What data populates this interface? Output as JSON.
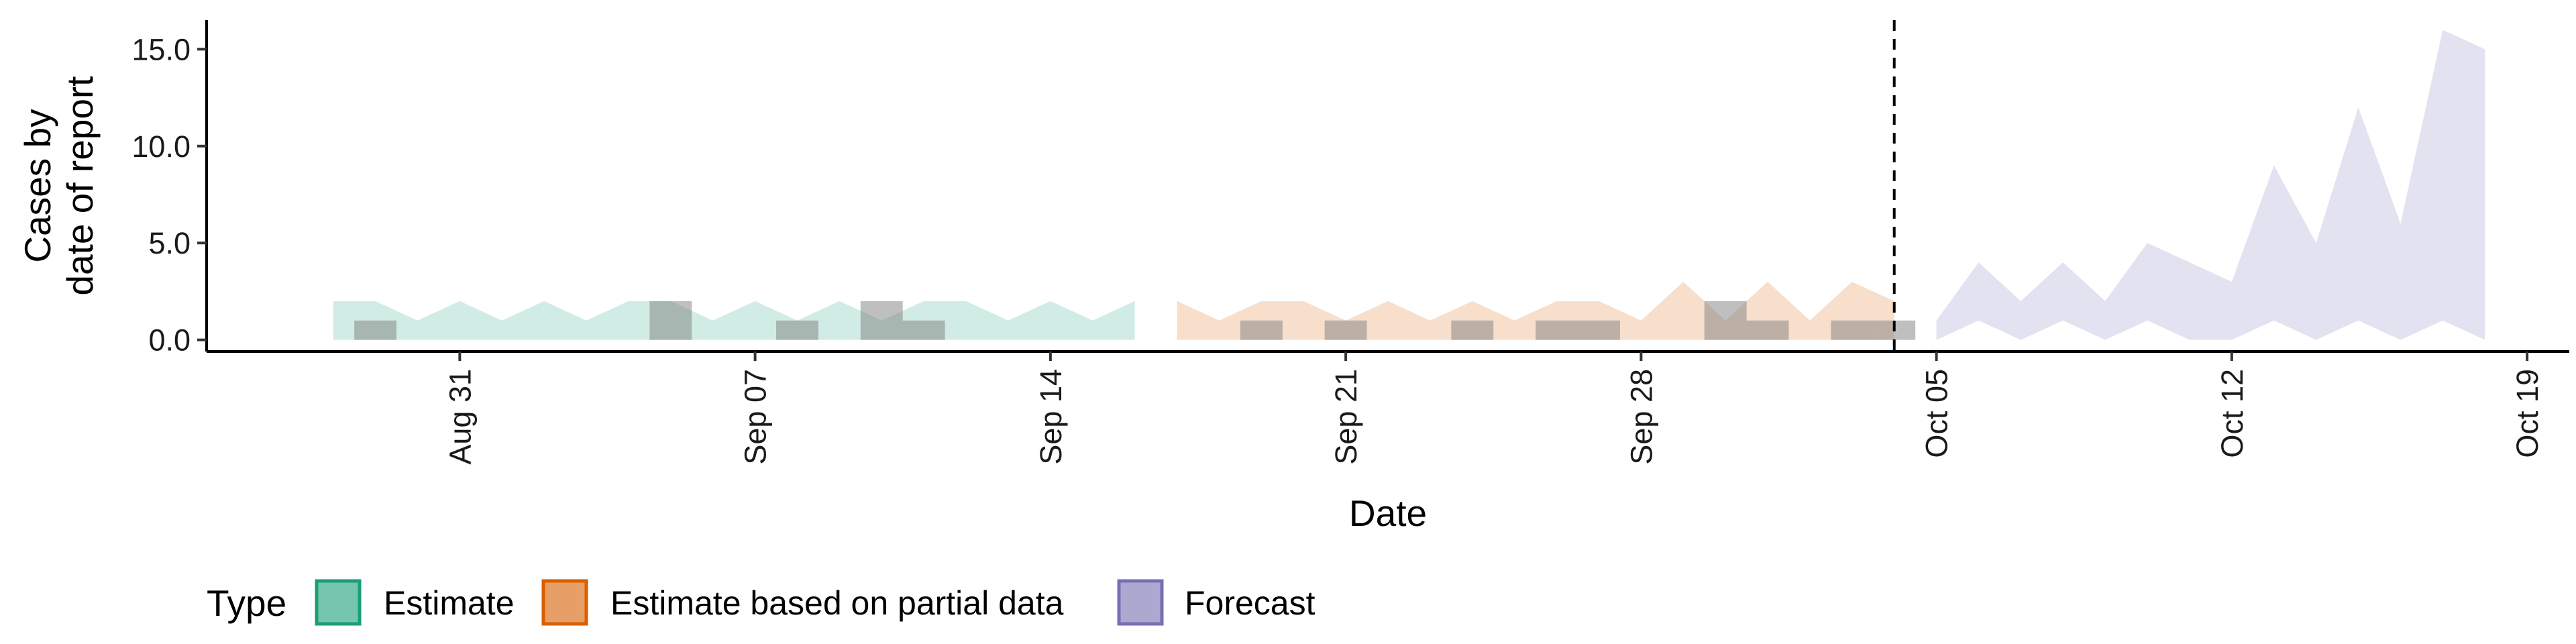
{
  "chart_data": {
    "type": "area",
    "xlabel": "Date",
    "ylabel": [
      "Cases by",
      "date of report"
    ],
    "ylim": [
      -0.6,
      16.5
    ],
    "y_ticks": [
      0,
      5,
      10,
      15
    ],
    "y_tick_labels": [
      "0.0",
      "5.0",
      "10.0",
      "15.0"
    ],
    "x_domain": [
      "2020-08-25",
      "2020-10-20"
    ],
    "x_ticks": [
      "2020-08-31",
      "2020-09-07",
      "2020-09-14",
      "2020-09-21",
      "2020-09-28",
      "2020-10-05",
      "2020-10-12",
      "2020-10-19"
    ],
    "x_tick_labels": [
      "Aug 31",
      "Sep 07",
      "Sep 14",
      "Sep 21",
      "Sep 28",
      "Oct 05",
      "Oct 12",
      "Oct 19"
    ],
    "estimate_cutoff": "2020-10-04",
    "series": [
      {
        "name": "Estimate",
        "color": "#1b9e77",
        "dates": [
          "2020-08-28",
          "2020-08-29",
          "2020-08-30",
          "2020-08-31",
          "2020-09-01",
          "2020-09-02",
          "2020-09-03",
          "2020-09-04",
          "2020-09-05",
          "2020-09-06",
          "2020-09-07",
          "2020-09-08",
          "2020-09-09",
          "2020-09-10",
          "2020-09-11",
          "2020-09-12",
          "2020-09-13",
          "2020-09-14",
          "2020-09-15",
          "2020-09-16"
        ],
        "lower": [
          0,
          0,
          0,
          0,
          0,
          0,
          0,
          0,
          0,
          0,
          0,
          0,
          0,
          0,
          0,
          0,
          0,
          0,
          0,
          0
        ],
        "upper": [
          2,
          2,
          1,
          2,
          1,
          2,
          1,
          2,
          2,
          1,
          2,
          1,
          2,
          1,
          2,
          2,
          1,
          2,
          1,
          2
        ]
      },
      {
        "name": "Estimate based on partial data",
        "color": "#d95f02",
        "dates": [
          "2020-09-17",
          "2020-09-18",
          "2020-09-19",
          "2020-09-20",
          "2020-09-21",
          "2020-09-22",
          "2020-09-23",
          "2020-09-24",
          "2020-09-25",
          "2020-09-26",
          "2020-09-27",
          "2020-09-28",
          "2020-09-29",
          "2020-09-30",
          "2020-10-01",
          "2020-10-02",
          "2020-10-03",
          "2020-10-04"
        ],
        "lower": [
          0,
          0,
          0,
          0,
          0,
          0,
          0,
          0,
          0,
          0,
          0,
          0,
          0,
          0,
          0,
          0,
          0,
          0
        ],
        "upper": [
          2,
          1,
          2,
          2,
          1,
          2,
          1,
          2,
          1,
          2,
          2,
          1,
          3,
          1,
          3,
          1,
          3,
          2
        ]
      },
      {
        "name": "Forecast",
        "color": "#7570b3",
        "dates": [
          "2020-10-05",
          "2020-10-06",
          "2020-10-07",
          "2020-10-08",
          "2020-10-09",
          "2020-10-10",
          "2020-10-11",
          "2020-10-12",
          "2020-10-13",
          "2020-10-14",
          "2020-10-15",
          "2020-10-16",
          "2020-10-17",
          "2020-10-18"
        ],
        "lower": [
          0,
          1,
          0,
          1,
          0,
          1,
          0,
          0,
          1,
          0,
          1,
          0,
          1,
          0
        ],
        "upper": [
          1,
          4,
          2,
          4,
          2,
          5,
          4,
          3,
          9,
          5,
          12,
          6,
          16,
          15
        ]
      }
    ],
    "reported_cases": {
      "color": "#7f7f7f",
      "dates": [
        "2020-08-29",
        "2020-09-05",
        "2020-09-08",
        "2020-09-10",
        "2020-09-11",
        "2020-09-19",
        "2020-09-21",
        "2020-09-24",
        "2020-09-26",
        "2020-09-27",
        "2020-09-30",
        "2020-10-01",
        "2020-10-03",
        "2020-10-04"
      ],
      "values": [
        1,
        2,
        1,
        2,
        1,
        1,
        1,
        1,
        1,
        1,
        2,
        1,
        1,
        1
      ]
    },
    "legend": {
      "title": "Type",
      "position": "bottom",
      "entries": [
        "Estimate",
        "Estimate based on partial data",
        "Forecast"
      ]
    }
  }
}
